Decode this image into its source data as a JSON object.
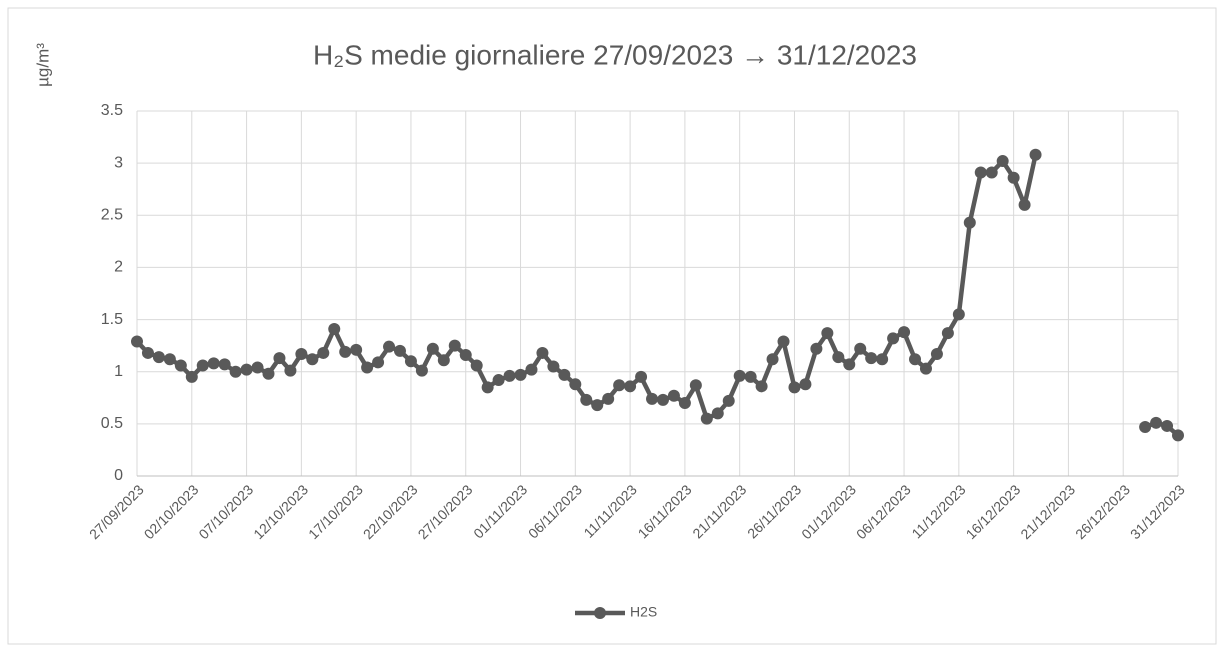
{
  "chart_data": {
    "type": "line",
    "title": "H₂S medie giornaliere 27/09/2023 → 31/12/2023",
    "y_label": "µg/m³",
    "categories": [
      "27/09/2023",
      null,
      null,
      null,
      null,
      "02/10/2023",
      null,
      null,
      null,
      null,
      "07/10/2023",
      null,
      null,
      null,
      null,
      "12/10/2023",
      null,
      null,
      null,
      null,
      "17/10/2023",
      null,
      null,
      null,
      null,
      "22/10/2023",
      null,
      null,
      null,
      null,
      "27/10/2023",
      null,
      null,
      null,
      null,
      "01/11/2023",
      null,
      null,
      null,
      null,
      "06/11/2023",
      null,
      null,
      null,
      null,
      "11/11/2023",
      null,
      null,
      null,
      null,
      "16/11/2023",
      null,
      null,
      null,
      null,
      "21/11/2023",
      null,
      null,
      null,
      null,
      "26/11/2023",
      null,
      null,
      null,
      null,
      "01/12/2023",
      null,
      null,
      null,
      null,
      "06/12/2023",
      null,
      null,
      null,
      null,
      "11/12/2023",
      null,
      null,
      null,
      null,
      "16/12/2023",
      null,
      null,
      null,
      null,
      "21/12/2023",
      null,
      null,
      null,
      null,
      "26/12/2023",
      null,
      null,
      null,
      null,
      "31/12/2023"
    ],
    "series": [
      {
        "name": "H2S",
        "color": "#595959",
        "values": [
          1.29,
          1.18,
          1.14,
          1.12,
          1.06,
          0.95,
          1.06,
          1.08,
          1.07,
          1.0,
          1.02,
          1.04,
          0.98,
          1.13,
          1.01,
          1.17,
          1.12,
          1.18,
          1.41,
          1.19,
          1.21,
          1.04,
          1.09,
          1.24,
          1.2,
          1.1,
          1.01,
          1.22,
          1.11,
          1.25,
          1.16,
          1.06,
          0.85,
          0.92,
          0.96,
          0.97,
          1.02,
          1.18,
          1.05,
          0.97,
          0.88,
          0.73,
          0.68,
          0.74,
          0.87,
          0.86,
          0.95,
          0.74,
          0.73,
          0.77,
          0.7,
          0.87,
          0.55,
          0.6,
          0.72,
          0.96,
          0.95,
          0.86,
          1.12,
          1.29,
          0.85,
          0.88,
          1.22,
          1.37,
          1.14,
          1.07,
          1.22,
          1.13,
          1.12,
          1.32,
          1.38,
          1.12,
          1.03,
          1.17,
          1.37,
          1.55,
          2.43,
          2.91,
          2.91,
          3.02,
          2.86,
          2.6,
          3.08,
          null,
          null,
          null,
          null,
          null,
          null,
          null,
          null,
          null,
          0.47,
          0.51,
          0.48,
          0.39
        ]
      }
    ],
    "ylim": [
      0,
      3.5
    ],
    "yticks": [
      0,
      0.5,
      1,
      1.5,
      2,
      2.5,
      3,
      3.5
    ],
    "grid": true,
    "legend": "bottom"
  }
}
